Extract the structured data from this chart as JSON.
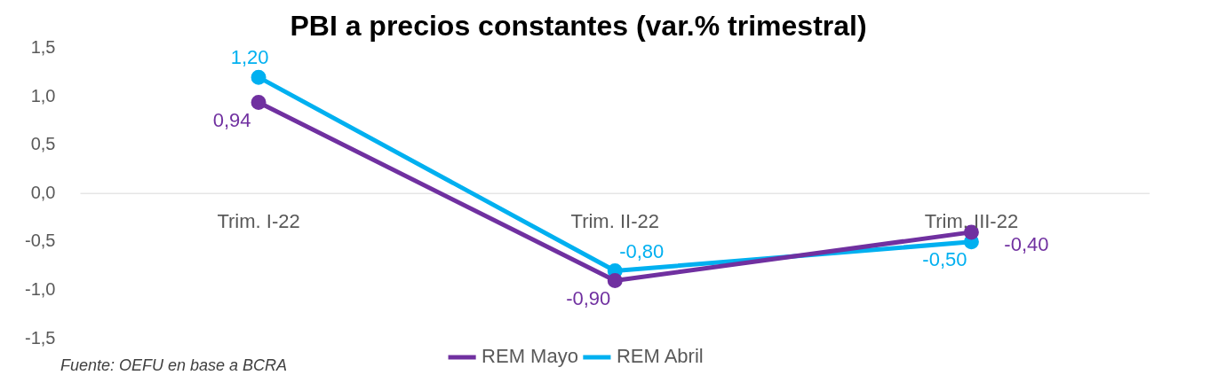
{
  "chart_data": {
    "type": "line",
    "title": "PBI a precios constantes (var.% trimestral)",
    "categories": [
      "Trim. I-22",
      "Trim. II-22",
      "Trim. III-22"
    ],
    "series": [
      {
        "name": "REM Mayo",
        "color": "#7030a0",
        "values": [
          0.94,
          -0.9,
          -0.4
        ],
        "value_labels": [
          "0,94",
          "-0,90",
          "-0,40"
        ]
      },
      {
        "name": "REM Abril",
        "color": "#00b0f0",
        "values": [
          1.2,
          -0.8,
          -0.5
        ],
        "value_labels": [
          "1,20",
          "-0,80",
          "-0,50"
        ]
      }
    ],
    "ylim": [
      -1.5,
      1.5
    ],
    "yticks": [
      {
        "value": -1.5,
        "label": "-1,5"
      },
      {
        "value": -1,
        "label": "-1,0"
      },
      {
        "value": -0.5,
        "label": "-0,5"
      },
      {
        "value": 0,
        "label": "0,0"
      },
      {
        "value": 0.5,
        "label": "0,5"
      },
      {
        "value": 1,
        "label": "1,0"
      },
      {
        "value": 1.5,
        "label": "1,5"
      }
    ],
    "grid": false,
    "legend": "bottom",
    "marker": "circle",
    "line_style": "solid",
    "annotations": [
      "Fuente: OEFU en base a BCRA"
    ]
  }
}
